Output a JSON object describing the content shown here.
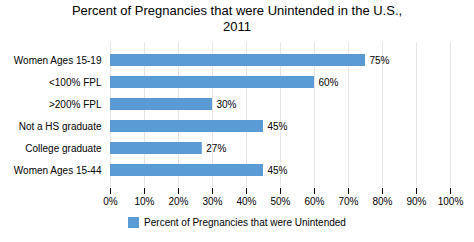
{
  "chart_data": {
    "type": "bar",
    "orientation": "horizontal",
    "title": "Percent of Pregnancies that were Unintended in the U.S.,\n2011",
    "categories": [
      "Women Ages 15-19",
      "<100% FPL",
      ">200% FPL",
      "Not a HS graduate",
      "College graduate",
      "Women Ages 15-44"
    ],
    "series": [
      {
        "name": "Percent of Pregnancies that were Unintended",
        "color": "#5b9bd5",
        "values": [
          75,
          60,
          30,
          45,
          27,
          45
        ],
        "value_labels": [
          "75%",
          "60%",
          "30%",
          "45%",
          "27%",
          "45%"
        ]
      }
    ],
    "xlim": [
      0,
      100
    ],
    "xticks": [
      {
        "value": 0,
        "label": "0%"
      },
      {
        "value": 10,
        "label": "10%"
      },
      {
        "value": 20,
        "label": "20%"
      },
      {
        "value": 30,
        "label": "30%"
      },
      {
        "value": 40,
        "label": "40%"
      },
      {
        "value": 50,
        "label": "50%"
      },
      {
        "value": 60,
        "label": "60%"
      },
      {
        "value": 70,
        "label": "70%"
      },
      {
        "value": 80,
        "label": "80%"
      },
      {
        "value": 90,
        "label": "90%"
      },
      {
        "value": 100,
        "label": "100%"
      }
    ],
    "grid": true,
    "data_labels": true,
    "legend": "bottom"
  }
}
